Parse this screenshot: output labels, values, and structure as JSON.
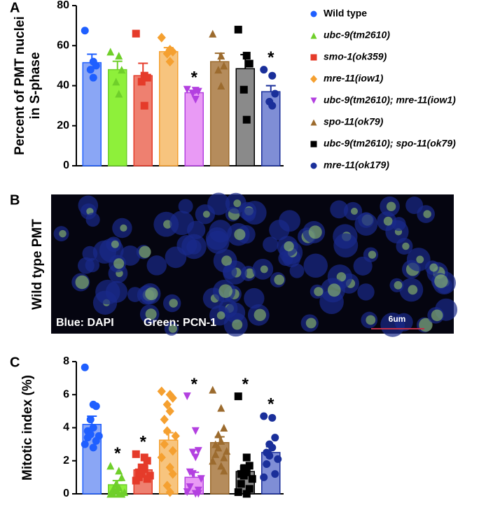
{
  "chart_data": [
    {
      "type": "bar",
      "panel_label": "A",
      "ylabel": [
        "Percent of PMT nuclei",
        "in S-phase"
      ],
      "ylim": [
        0,
        80
      ],
      "yticks": [
        0,
        20,
        40,
        60,
        80
      ],
      "values": [
        51.5,
        48,
        45,
        57,
        36.5,
        52,
        48.5,
        37
      ],
      "errors": [
        4.2,
        4.2,
        6.2,
        2,
        1.2,
        4.2,
        7,
        3
      ],
      "points": [
        [
          67.5,
          52,
          50,
          48,
          44
        ],
        [
          57,
          55,
          48,
          42,
          36
        ],
        [
          66,
          45,
          44,
          42,
          30
        ],
        [
          64,
          58,
          57,
          56,
          52
        ],
        [
          38,
          37.5,
          37,
          36,
          33
        ],
        [
          66,
          55,
          50,
          48,
          40
        ],
        [
          68,
          55,
          51,
          38,
          23
        ],
        [
          48,
          45,
          36,
          32,
          30
        ]
      ],
      "annotations": [
        null,
        null,
        null,
        null,
        "*",
        null,
        null,
        "*"
      ],
      "bar_colors": [
        "#8aa6f5",
        "#8ef03a",
        "#ee8070",
        "#f7c47e",
        "#e99af5",
        "#b58c5c",
        "#8a8a8a",
        "#7f8ed6"
      ],
      "point_colors": [
        "#1f5fff",
        "#6fcf2a",
        "#e53b2a",
        "#f5a030",
        "#b340e0",
        "#9c6b2e",
        "#000000",
        "#1a2f9a"
      ],
      "legend": {
        "items": [
          {
            "name": "Wild type",
            "marker": "circle"
          },
          {
            "name": "ubc-9(tm2610)",
            "marker": "triangle"
          },
          {
            "name": "smo-1(ok359)",
            "marker": "square"
          },
          {
            "name": "mre-11(iow1)",
            "marker": "diamond"
          },
          {
            "name": "ubc-9(tm2610); mre-11(iow1)",
            "marker": "triangle-down"
          },
          {
            "name": "spo-11(ok79)",
            "marker": "triangle"
          },
          {
            "name": "ubc-9(tm2610); spo-11(ok79)",
            "marker": "square"
          },
          {
            "name": "mre-11(ok179)",
            "marker": "circle"
          }
        ]
      }
    },
    {
      "type": "bar",
      "panel_label": "C",
      "ylabel": [
        "Mitotic index (%)"
      ],
      "ylim": [
        0,
        8
      ],
      "yticks": [
        0,
        2,
        4,
        6,
        8
      ],
      "values": [
        4.2,
        0.55,
        1.45,
        3.25,
        1.0,
        3.1,
        1.35,
        2.5
      ],
      "errors": [
        0.5,
        0.25,
        0.3,
        0.45,
        0.3,
        0.35,
        0.4,
        0.35
      ],
      "points": [
        [
          7.65,
          5.4,
          5.3,
          4.5,
          4.0,
          3.8,
          3.6,
          3.5,
          3.4,
          3.2,
          3.0,
          2.8
        ],
        [
          1.7,
          1.4,
          1.0,
          0.6,
          0.4,
          0.3,
          0.2,
          0.1,
          0,
          0,
          0,
          0
        ],
        [
          2.4,
          2.2,
          2.0,
          1.6,
          1.5,
          1.3,
          1.2,
          1.1,
          1.0,
          0.9,
          0.8
        ],
        [
          6.2,
          6.0,
          5.8,
          5.4,
          5.0,
          4.5,
          3.8,
          3.5,
          3.0,
          2.6,
          2.2,
          1.6,
          1.2,
          0.5,
          0.1
        ],
        [
          5.9,
          3.8,
          2.6,
          2.5,
          2.2,
          1.3,
          1.2,
          0.9,
          0.4,
          0.2,
          0.1,
          0,
          0
        ],
        [
          6.3,
          5.2,
          4.0,
          3.6,
          3.2,
          3.0,
          2.8,
          2.6,
          2.4,
          2.2,
          2.0,
          1.7,
          1.4
        ],
        [
          5.9,
          2.2,
          1.7,
          1.5,
          1.3,
          1.2,
          1.1,
          0.9,
          0.6,
          0.3,
          0.1,
          0
        ],
        [
          4.7,
          4.6,
          3.4,
          3.0,
          2.8,
          2.5,
          2.3,
          2.1,
          1.8,
          1.2,
          1.0
        ]
      ],
      "annotations": [
        null,
        "*",
        "*",
        null,
        "*",
        null,
        "*",
        "*"
      ],
      "bar_colors": [
        "#8aa6f5",
        "#8ef03a",
        "#ee8070",
        "#f7c47e",
        "#e99af5",
        "#b58c5c",
        "#8a8a8a",
        "#7f8ed6"
      ],
      "point_colors": [
        "#1f5fff",
        "#6fcf2a",
        "#e53b2a",
        "#f5a030",
        "#b340e0",
        "#9c6b2e",
        "#000000",
        "#1a2f9a"
      ]
    }
  ],
  "image_panel": {
    "panel_label": "B",
    "side_label": "Wild type PMT",
    "captions": [
      "Blue: DAPI",
      "Green: PCN-1"
    ],
    "scale_bar": "6um"
  }
}
